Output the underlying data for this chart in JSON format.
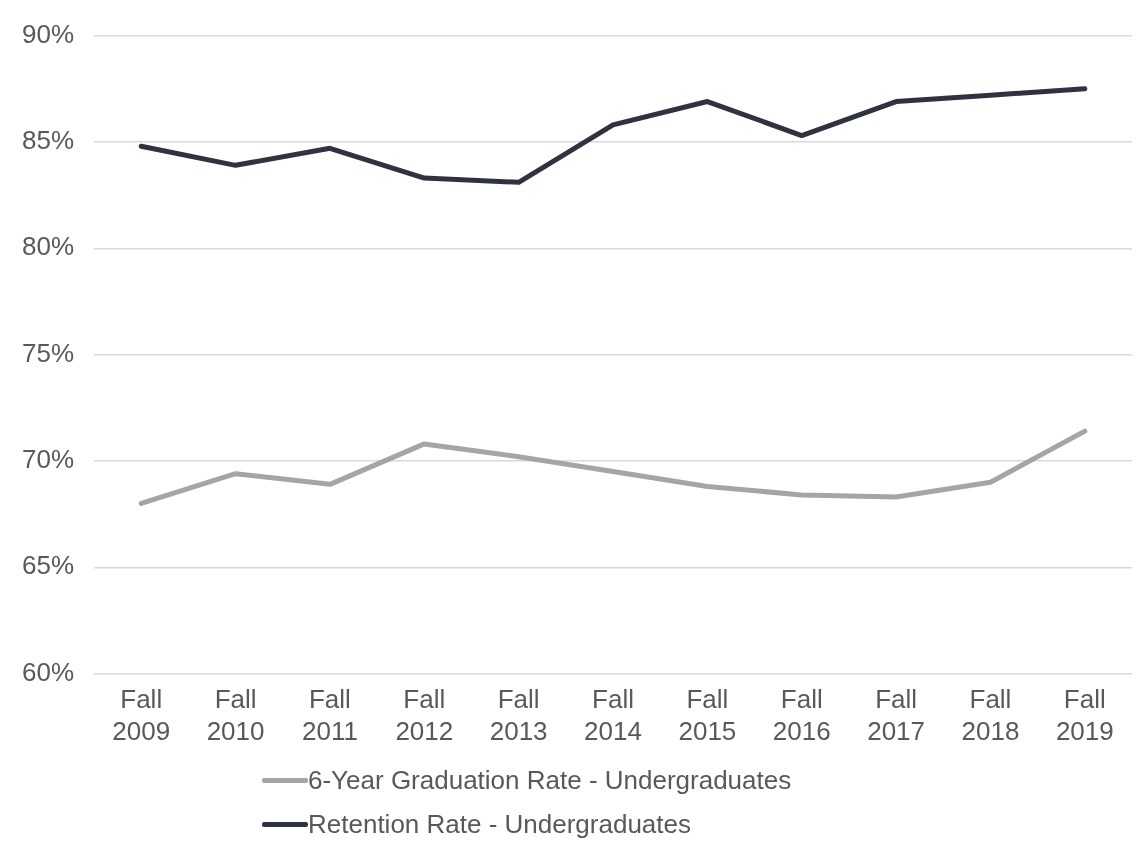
{
  "chart_data": {
    "type": "line",
    "categories": [
      "Fall 2009",
      "Fall 2010",
      "Fall 2011",
      "Fall 2012",
      "Fall 2013",
      "Fall 2014",
      "Fall 2015",
      "Fall 2016",
      "Fall 2017",
      "Fall 2018",
      "Fall 2019"
    ],
    "series": [
      {
        "name": "6-Year Graduation Rate - Undergraduates",
        "color": "#a5a5a5",
        "values": [
          68.0,
          69.4,
          68.9,
          70.8,
          70.2,
          69.5,
          68.8,
          68.4,
          68.3,
          69.0,
          71.4
        ]
      },
      {
        "name": "Retention Rate - Undergraduates",
        "color": "#2f3340",
        "values": [
          84.8,
          83.9,
          84.7,
          83.3,
          83.1,
          85.8,
          86.9,
          85.3,
          86.9,
          87.2,
          87.5
        ]
      }
    ],
    "ylim": [
      60,
      90
    ],
    "yticks": [
      {
        "value": 60,
        "label": "60%"
      },
      {
        "value": 65,
        "label": "65%"
      },
      {
        "value": 70,
        "label": "70%"
      },
      {
        "value": 75,
        "label": "75%"
      },
      {
        "value": 80,
        "label": "80%"
      },
      {
        "value": 85,
        "label": "85%"
      },
      {
        "value": 90,
        "label": "90%"
      }
    ],
    "grid": "y",
    "legend": "bottom",
    "marker": "none",
    "line_style": "solid"
  }
}
